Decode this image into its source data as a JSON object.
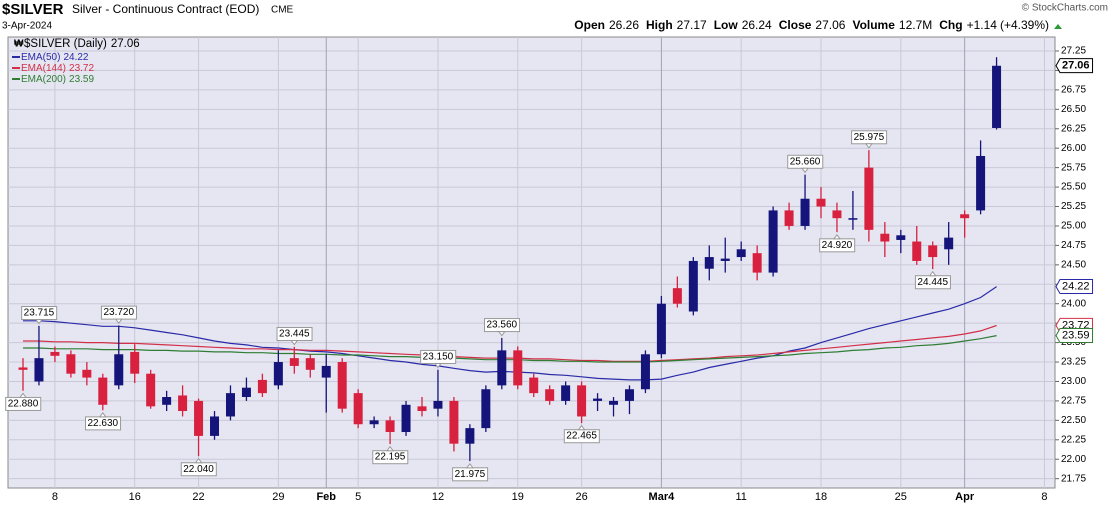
{
  "chart_data": {
    "type": "candlestick",
    "title": "$SILVER",
    "subtitle": "Silver - Continuous Contract (EOD)",
    "exchange": "CME",
    "date": "3-Apr-2024",
    "source": "© StockCharts.com",
    "name": "$SILVER (Daily)",
    "quote": {
      "labels": [
        "Open",
        "High",
        "Low",
        "Close",
        "Volume",
        "Chg"
      ],
      "volume": {
        "value": 12700000,
        "label": "12.7M"
      },
      "change": {
        "value": 1.14,
        "label": "+1.14"
      },
      "change_pct": {
        "value": 4.39,
        "label": "(+4.39%)"
      }
    },
    "categories": [
      null,
      null,
      "8",
      null,
      null,
      null,
      null,
      "16",
      null,
      null,
      null,
      "22",
      null,
      null,
      null,
      null,
      "29",
      null,
      null,
      "Feb",
      null,
      "5",
      null,
      null,
      null,
      null,
      "12",
      null,
      null,
      null,
      null,
      "19",
      null,
      null,
      null,
      "26",
      null,
      null,
      null,
      null,
      "Mar4",
      null,
      null,
      null,
      null,
      "11",
      null,
      null,
      null,
      null,
      "18",
      null,
      null,
      null,
      null,
      "25",
      null,
      null,
      null,
      "Apr",
      null,
      null,
      null,
      null,
      "8"
    ],
    "open": [
      23.18,
      23.0,
      23.38,
      23.35,
      23.15,
      23.05,
      22.95,
      23.38,
      23.1,
      22.7,
      22.82,
      22.75,
      22.3,
      22.55,
      22.8,
      23.02,
      22.95,
      23.3,
      23.3,
      23.05,
      23.25,
      22.85,
      22.45,
      22.5,
      22.35,
      22.68,
      22.65,
      22.75,
      22.2,
      22.4,
      22.95,
      23.4,
      23.05,
      22.9,
      22.75,
      22.95,
      22.75,
      22.7,
      22.75,
      22.9,
      23.35,
      24.2,
      23.9,
      24.45,
      24.55,
      24.6,
      24.65,
      24.4,
      25.2,
      25.0,
      25.35,
      25.2,
      25.08,
      25.75,
      24.9,
      24.82,
      24.8,
      24.75,
      24.7,
      25.15,
      25.2,
      26.26,
      null,
      null,
      null
    ],
    "high": [
      23.3,
      23.715,
      23.45,
      23.4,
      23.25,
      23.1,
      23.72,
      23.48,
      23.15,
      22.88,
      22.95,
      22.78,
      22.62,
      22.95,
      23.05,
      23.1,
      23.4,
      23.445,
      23.35,
      23.35,
      23.3,
      22.9,
      22.55,
      22.55,
      22.75,
      22.8,
      23.15,
      22.8,
      22.45,
      22.95,
      23.56,
      23.45,
      23.1,
      22.95,
      23.0,
      23.0,
      22.85,
      22.8,
      22.95,
      23.4,
      24.1,
      24.35,
      24.6,
      24.75,
      24.85,
      24.8,
      24.75,
      25.25,
      25.3,
      25.66,
      25.5,
      25.3,
      25.45,
      25.975,
      25.05,
      24.95,
      25.0,
      24.8,
      25.05,
      25.2,
      26.1,
      27.17,
      null,
      null,
      null
    ],
    "low": [
      22.88,
      22.95,
      23.25,
      23.05,
      22.95,
      22.63,
      22.9,
      22.98,
      22.65,
      22.62,
      22.55,
      22.04,
      22.25,
      22.5,
      22.75,
      22.8,
      22.9,
      23.1,
      23.05,
      22.6,
      22.6,
      22.4,
      22.4,
      22.195,
      22.3,
      22.55,
      22.55,
      22.1,
      21.975,
      22.35,
      22.9,
      22.9,
      22.8,
      22.7,
      22.7,
      22.465,
      22.62,
      22.55,
      22.58,
      22.85,
      23.3,
      23.95,
      23.85,
      24.3,
      24.4,
      24.55,
      24.3,
      24.35,
      24.95,
      24.95,
      25.1,
      24.92,
      24.95,
      24.8,
      24.6,
      24.65,
      24.5,
      24.445,
      24.5,
      24.85,
      25.15,
      26.24,
      null,
      null,
      null
    ],
    "close": [
      23.15,
      23.3,
      23.33,
      23.1,
      23.05,
      22.7,
      23.35,
      23.1,
      22.68,
      22.8,
      22.62,
      22.3,
      22.55,
      22.85,
      22.92,
      22.85,
      23.25,
      23.2,
      23.15,
      23.2,
      22.65,
      22.45,
      22.5,
      22.35,
      22.7,
      22.62,
      22.75,
      22.2,
      22.4,
      22.9,
      23.4,
      22.95,
      22.85,
      22.75,
      22.95,
      22.55,
      22.78,
      22.75,
      22.9,
      23.35,
      24.0,
      24.0,
      24.55,
      24.6,
      24.58,
      24.7,
      24.4,
      25.2,
      25.0,
      25.35,
      25.25,
      25.1,
      25.1,
      24.95,
      24.8,
      24.88,
      24.55,
      24.6,
      24.85,
      25.1,
      25.9,
      27.06,
      null,
      null,
      null
    ],
    "high_labels": [
      null,
      "23.715",
      null,
      null,
      null,
      null,
      "23.720",
      null,
      null,
      null,
      null,
      null,
      null,
      null,
      null,
      null,
      null,
      "23.445",
      null,
      null,
      null,
      null,
      null,
      null,
      null,
      null,
      "23.150",
      null,
      null,
      null,
      "23.560",
      null,
      null,
      null,
      null,
      null,
      null,
      null,
      null,
      null,
      null,
      null,
      null,
      null,
      null,
      null,
      null,
      null,
      null,
      "25.660",
      null,
      null,
      null,
      "25.975",
      null,
      null,
      null,
      null,
      null,
      null,
      null,
      null,
      null,
      null,
      null
    ],
    "low_labels": [
      "22.880",
      null,
      null,
      null,
      null,
      "22.630",
      null,
      null,
      null,
      null,
      null,
      "22.040",
      null,
      null,
      null,
      null,
      null,
      null,
      null,
      null,
      null,
      null,
      null,
      "22.195",
      null,
      null,
      null,
      null,
      "21.975",
      null,
      null,
      null,
      null,
      null,
      null,
      "22.465",
      null,
      null,
      null,
      null,
      null,
      null,
      null,
      null,
      null,
      null,
      null,
      null,
      null,
      null,
      null,
      "24.920",
      null,
      null,
      null,
      null,
      null,
      "24.445",
      null,
      null,
      null,
      null,
      null,
      null,
      null
    ],
    "up_color": "#14147a",
    "down_color": "#d8203f",
    "overlays": [
      {
        "name": "EMA(50)",
        "color": "#2a2aa8",
        "values": [
          23.78,
          23.78,
          23.77,
          23.75,
          23.73,
          23.71,
          23.71,
          23.69,
          23.66,
          23.63,
          23.6,
          23.56,
          23.52,
          23.49,
          23.47,
          23.44,
          23.43,
          23.41,
          23.39,
          23.38,
          23.36,
          23.33,
          23.3,
          23.27,
          23.25,
          23.22,
          23.2,
          23.17,
          23.14,
          23.12,
          23.13,
          23.12,
          23.11,
          23.09,
          23.08,
          23.06,
          23.04,
          23.03,
          23.02,
          23.02,
          23.03,
          23.08,
          23.12,
          23.18,
          23.22,
          23.26,
          23.3,
          23.33,
          23.39,
          23.43,
          23.5,
          23.56,
          23.62,
          23.68,
          23.73,
          23.78,
          23.83,
          23.88,
          23.93,
          24.0,
          24.08,
          24.22,
          null,
          null,
          null
        ]
      },
      {
        "name": "EMA(144)",
        "color": "#d23048",
        "values": [
          23.52,
          23.52,
          23.51,
          23.51,
          23.5,
          23.5,
          23.49,
          23.49,
          23.48,
          23.47,
          23.46,
          23.45,
          23.44,
          23.43,
          23.42,
          23.42,
          23.41,
          23.41,
          23.4,
          23.4,
          23.39,
          23.38,
          23.37,
          23.36,
          23.35,
          23.34,
          23.33,
          23.32,
          23.31,
          23.3,
          23.3,
          23.3,
          23.29,
          23.29,
          23.28,
          23.27,
          23.27,
          23.26,
          23.26,
          23.26,
          23.27,
          23.28,
          23.29,
          23.3,
          23.32,
          23.33,
          23.34,
          23.36,
          23.38,
          23.4,
          23.42,
          23.44,
          23.46,
          23.48,
          23.5,
          23.52,
          23.54,
          23.56,
          23.58,
          23.61,
          23.65,
          23.72,
          null,
          null,
          null
        ]
      },
      {
        "name": "EMA(200)",
        "color": "#2e7d32",
        "values": [
          23.43,
          23.43,
          23.42,
          23.42,
          23.42,
          23.41,
          23.41,
          23.41,
          23.4,
          23.4,
          23.39,
          23.39,
          23.38,
          23.38,
          23.37,
          23.37,
          23.36,
          23.36,
          23.35,
          23.35,
          23.34,
          23.34,
          23.33,
          23.32,
          23.32,
          23.31,
          23.3,
          23.3,
          23.29,
          23.28,
          23.28,
          23.28,
          23.27,
          23.27,
          23.26,
          23.26,
          23.25,
          23.25,
          23.25,
          23.25,
          23.26,
          23.27,
          23.28,
          23.29,
          23.3,
          23.31,
          23.32,
          23.33,
          23.34,
          23.36,
          23.37,
          23.38,
          23.4,
          23.41,
          23.43,
          23.44,
          23.46,
          23.47,
          23.49,
          23.52,
          23.55,
          23.59,
          null,
          null,
          null
        ]
      }
    ],
    "ylim": [
      21.63,
      27.43
    ],
    "yticks": [
      21.75,
      {
        "value": 22,
        "label": "22.00"
      },
      22.25,
      {
        "value": 22.5,
        "label": "22.50"
      },
      22.75,
      {
        "value": 23,
        "label": "23.00"
      },
      23.25,
      {
        "value": 23.5,
        "label": "23.50"
      },
      23.75,
      {
        "value": 24,
        "label": "24.00"
      },
      24.25,
      {
        "value": 24.5,
        "label": "24.50"
      },
      24.75,
      {
        "value": 25,
        "label": "25.00"
      },
      25.25,
      {
        "value": 25.5,
        "label": "25.50"
      },
      25.75,
      {
        "value": 26,
        "label": "26.00"
      },
      26.25,
      {
        "value": 26.5,
        "label": "26.50"
      },
      26.75,
      {
        "value": 27,
        "label": "27.00"
      },
      27.25
    ],
    "grid": true,
    "legend": "top-left"
  }
}
